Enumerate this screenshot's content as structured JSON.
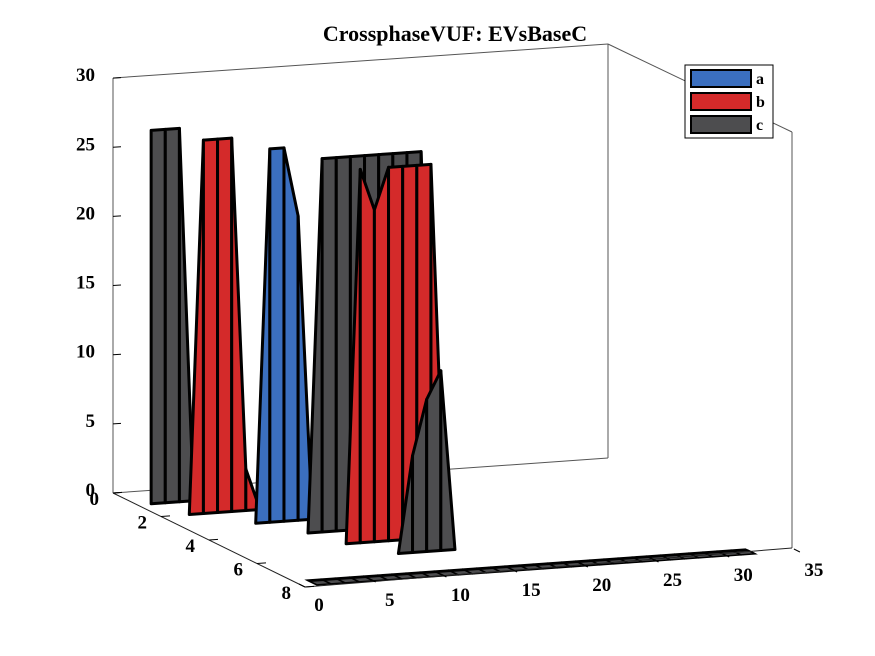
{
  "chart_data": {
    "type": "3d-ribbon",
    "title": "CrossphaseVUF: EVsBaseC",
    "xlabel": "",
    "ylabel": "",
    "zlabel": "",
    "xlim": [
      0,
      35
    ],
    "ylim": [
      0,
      8
    ],
    "zlim": [
      0,
      30
    ],
    "x_ticks": [
      "0",
      "5",
      "10",
      "15",
      "20",
      "25",
      "30",
      "35"
    ],
    "y_ticks": [
      "0",
      "2",
      "4",
      "6",
      "8"
    ],
    "z_ticks": [
      "0",
      "5",
      "10",
      "15",
      "20",
      "25",
      "30"
    ],
    "grid": false,
    "legend_position": "top-right",
    "x": [
      1,
      2,
      3,
      4,
      5,
      6,
      7,
      8,
      9,
      10,
      11,
      12,
      13,
      14,
      15,
      16,
      17,
      18,
      19,
      20,
      21,
      22,
      23,
      24,
      25,
      26,
      27,
      28,
      29,
      30,
      31,
      32
    ],
    "series": [
      {
        "name": "a",
        "color": "#3b6fbf",
        "ribbon_index": 8,
        "values": [
          0,
          0,
          0,
          0,
          0,
          0,
          0,
          0,
          0,
          0,
          0,
          0,
          0,
          0,
          0,
          0,
          0,
          0,
          0,
          0,
          0,
          0,
          0,
          0,
          0,
          0,
          0,
          0,
          0,
          0,
          0,
          0
        ]
      },
      {
        "name": "b",
        "color": "#d42a2a",
        "ribbon_index": 8,
        "values": [
          0,
          0,
          0,
          0,
          0,
          0,
          0,
          0,
          0,
          0,
          0,
          0,
          0,
          0,
          0,
          0,
          0,
          0,
          0,
          0,
          0,
          0,
          0,
          0,
          0,
          0,
          0,
          0,
          0,
          0,
          0,
          0
        ]
      },
      {
        "name": "c",
        "color": "#4d4d4f",
        "ribbon_index": 8,
        "values": [
          0,
          0,
          0,
          0,
          0,
          0,
          0,
          0,
          0,
          0,
          0,
          0,
          0,
          0,
          0,
          0,
          0,
          0,
          0,
          0,
          0,
          0,
          0,
          0,
          0,
          0,
          0,
          0,
          0,
          0,
          0,
          0
        ]
      }
    ],
    "ribbons": [
      {
        "y": 1,
        "color": "#4d4d4f",
        "values": [
          27,
          27,
          27,
          0,
          0,
          0,
          0,
          0,
          0,
          0,
          0,
          0,
          0,
          0,
          0,
          0,
          0,
          0,
          0,
          0,
          0,
          0,
          0,
          0,
          0,
          0,
          0,
          0,
          0,
          0,
          0,
          0
        ]
      },
      {
        "y": 2,
        "color": "#d42a2a",
        "values": [
          0,
          0,
          27,
          27,
          27,
          3,
          0,
          0,
          0,
          0,
          0,
          0,
          0,
          0,
          0,
          0,
          0,
          0,
          0,
          0,
          0,
          0,
          0,
          0,
          0,
          0,
          0,
          0,
          0,
          0,
          0,
          0
        ]
      },
      {
        "y": 3,
        "color": "#3b6fbf",
        "values": [
          0,
          0,
          0,
          0,
          0,
          27,
          27,
          22,
          0,
          0,
          0,
          0,
          0,
          0,
          0,
          0,
          0,
          0,
          0,
          0,
          0,
          0,
          0,
          0,
          0,
          0,
          0,
          0,
          0,
          0,
          0,
          0
        ]
      },
      {
        "y": 4,
        "color": "#4d4d4f",
        "values": [
          0,
          0,
          0,
          0,
          0,
          0,
          0,
          27,
          27,
          27,
          27,
          27,
          27,
          27,
          27,
          0,
          0,
          0,
          0,
          0,
          0,
          0,
          0,
          0,
          0,
          0,
          0,
          0,
          0,
          0,
          0,
          0
        ]
      },
      {
        "y": 5,
        "color": "#d42a2a",
        "values": [
          0,
          0,
          0,
          0,
          0,
          0,
          0,
          0,
          27,
          24,
          27,
          27,
          27,
          27,
          0,
          0,
          0,
          0,
          0,
          0,
          0,
          0,
          0,
          0,
          0,
          0,
          0,
          0,
          0,
          0,
          0,
          0
        ]
      },
      {
        "y": 6,
        "color": "#4d4d4f",
        "values": [
          0,
          0,
          0,
          0,
          0,
          0,
          0,
          0,
          0,
          0,
          7,
          11,
          13,
          0,
          0,
          0,
          0,
          0,
          0,
          0,
          0,
          0,
          0,
          0,
          0,
          0,
          0,
          0,
          0,
          0,
          0,
          0
        ]
      }
    ]
  }
}
